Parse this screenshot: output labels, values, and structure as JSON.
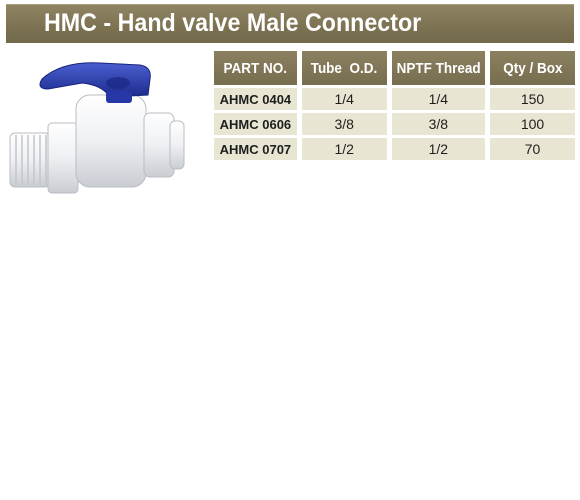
{
  "title": "HMC - Hand valve Male Connector",
  "table": {
    "headers": [
      "PART NO.",
      "Tube  O.D.",
      "NPTF Thread",
      "Qty / Box"
    ],
    "rows": [
      [
        "AHMC 0404",
        "1/4",
        "1/4",
        "150"
      ],
      [
        "AHMC 0606",
        "3/8",
        "3/8",
        "100"
      ],
      [
        "AHMC 0707",
        "1/2",
        "1/2",
        "70"
      ]
    ]
  },
  "colors": {
    "header_bar": "#7c7252",
    "cell_background": "#e9e5d3",
    "valve_handle": "#2f3fae",
    "valve_body": "#f2f3f5"
  },
  "product_image": "hand-valve-male-connector"
}
